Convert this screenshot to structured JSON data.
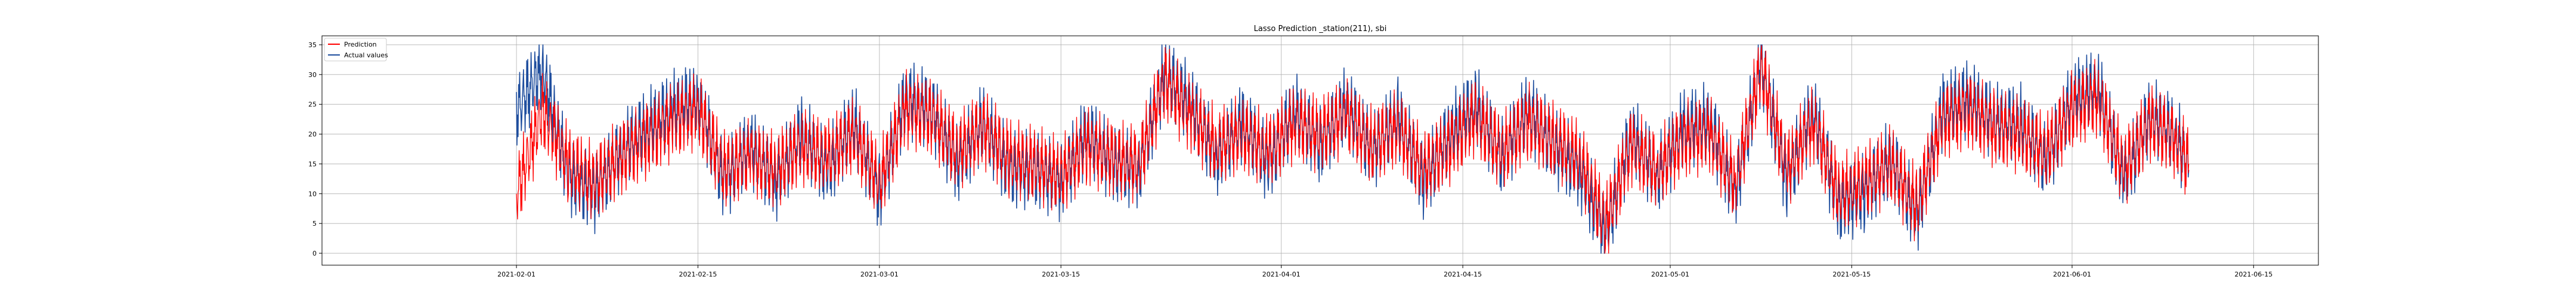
{
  "chart_data": {
    "type": "line",
    "title": "Lasso Prediction _station(211), sbi",
    "xlabel": "",
    "ylabel": "",
    "grid": true,
    "legend_position": "top-left",
    "x_start": "2021-02-01",
    "x_end": "2021-06-10",
    "xlim": [
      "2021-01-17",
      "2021-06-20"
    ],
    "ylim": [
      -2,
      36.5
    ],
    "x_ticks": [
      "2021-02-01",
      "2021-02-15",
      "2021-03-01",
      "2021-03-15",
      "2021-04-01",
      "2021-04-15",
      "2021-05-01",
      "2021-05-15",
      "2021-06-01",
      "2021-06-15"
    ],
    "y_ticks": [
      0,
      5,
      10,
      15,
      20,
      25,
      30,
      35
    ],
    "series": [
      {
        "name": "Prediction",
        "color": "#ff0000",
        "dates": [
          "2021-02-01",
          "2021-02-03",
          "2021-02-05",
          "2021-02-07",
          "2021-02-09",
          "2021-02-11",
          "2021-02-13",
          "2021-02-15",
          "2021-02-17",
          "2021-02-19",
          "2021-02-21",
          "2021-02-23",
          "2021-02-25",
          "2021-02-27",
          "2021-03-01",
          "2021-03-03",
          "2021-03-05",
          "2021-03-07",
          "2021-03-09",
          "2021-03-11",
          "2021-03-13",
          "2021-03-15",
          "2021-03-17",
          "2021-03-19",
          "2021-03-21",
          "2021-03-23",
          "2021-03-25",
          "2021-03-27",
          "2021-03-29",
          "2021-03-31",
          "2021-04-02",
          "2021-04-04",
          "2021-04-06",
          "2021-04-08",
          "2021-04-10",
          "2021-04-12",
          "2021-04-14",
          "2021-04-16",
          "2021-04-18",
          "2021-04-20",
          "2021-04-22",
          "2021-04-24",
          "2021-04-26",
          "2021-04-28",
          "2021-04-30",
          "2021-05-02",
          "2021-05-04",
          "2021-05-06",
          "2021-05-08",
          "2021-05-10",
          "2021-05-12",
          "2021-05-14",
          "2021-05-16",
          "2021-05-18",
          "2021-05-20",
          "2021-05-22",
          "2021-05-24",
          "2021-05-26",
          "2021-05-28",
          "2021-05-30",
          "2021-06-01",
          "2021-06-03",
          "2021-06-05",
          "2021-06-07",
          "2021-06-09",
          "2021-06-10"
        ],
        "values": [
          10,
          24,
          15,
          12,
          16,
          19,
          22,
          24,
          14,
          16,
          14,
          18,
          16,
          20,
          12,
          24,
          23,
          17,
          21,
          16,
          15,
          13,
          18,
          16,
          15,
          29,
          23,
          18,
          20,
          17,
          22,
          20,
          23,
          18,
          21,
          14,
          18,
          23,
          17,
          22,
          19,
          16,
          5,
          18,
          14,
          19,
          20,
          12,
          31,
          14,
          22,
          10,
          12,
          15,
          8,
          22,
          24,
          21,
          20,
          17,
          24,
          26,
          14,
          22,
          19,
          15
        ]
      },
      {
        "name": "Actual values",
        "color": "#1f4e9e",
        "dates": [
          "2021-02-01",
          "2021-02-03",
          "2021-02-05",
          "2021-02-07",
          "2021-02-09",
          "2021-02-11",
          "2021-02-13",
          "2021-02-15",
          "2021-02-17",
          "2021-02-19",
          "2021-02-21",
          "2021-02-23",
          "2021-02-25",
          "2021-02-27",
          "2021-03-01",
          "2021-03-03",
          "2021-03-05",
          "2021-03-07",
          "2021-03-09",
          "2021-03-11",
          "2021-03-13",
          "2021-03-15",
          "2021-03-17",
          "2021-03-19",
          "2021-03-21",
          "2021-03-23",
          "2021-03-25",
          "2021-03-27",
          "2021-03-29",
          "2021-03-31",
          "2021-04-02",
          "2021-04-04",
          "2021-04-06",
          "2021-04-08",
          "2021-04-10",
          "2021-04-12",
          "2021-04-14",
          "2021-04-16",
          "2021-04-18",
          "2021-04-20",
          "2021-04-22",
          "2021-04-24",
          "2021-04-26",
          "2021-04-28",
          "2021-04-30",
          "2021-05-02",
          "2021-05-04",
          "2021-05-06",
          "2021-05-08",
          "2021-05-10",
          "2021-05-12",
          "2021-05-14",
          "2021-05-16",
          "2021-05-18",
          "2021-05-20",
          "2021-05-22",
          "2021-05-24",
          "2021-05-26",
          "2021-05-28",
          "2021-05-30",
          "2021-06-01",
          "2021-06-03",
          "2021-06-05",
          "2021-06-07",
          "2021-06-09",
          "2021-06-10"
        ],
        "values": [
          24,
          31,
          13,
          10,
          17,
          21,
          24,
          26,
          12,
          18,
          12,
          20,
          14,
          22,
          10,
          26,
          24,
          15,
          22,
          14,
          14,
          12,
          20,
          15,
          14,
          30,
          25,
          16,
          22,
          15,
          24,
          18,
          25,
          17,
          23,
          12,
          20,
          25,
          16,
          24,
          18,
          14,
          3,
          20,
          13,
          21,
          22,
          10,
          32,
          12,
          24,
          8,
          10,
          16,
          6,
          24,
          26,
          22,
          22,
          15,
          26,
          28,
          12,
          23,
          20,
          14
        ]
      }
    ]
  }
}
